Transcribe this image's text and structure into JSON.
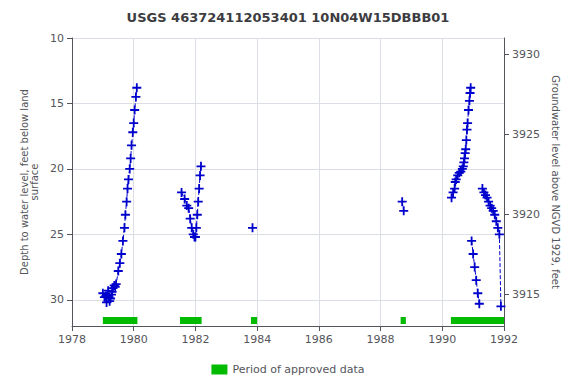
{
  "chart_data": {
    "type": "line",
    "title": "USGS 463724112053401 10N04W15DBBB01",
    "ylabel": "Depth to water level, feet below land\nsurface",
    "y2label": "Groundwater level above NGVD 1929, feet",
    "xlim": [
      1978,
      1992
    ],
    "xticks": [
      1978,
      1980,
      1982,
      1984,
      1986,
      1988,
      1990,
      1992
    ],
    "ylim": [
      32,
      10
    ],
    "yticks": [
      10,
      15,
      20,
      25,
      30
    ],
    "y2lim": [
      3913,
      3931
    ],
    "y2ticks": [
      3915,
      3920,
      3925,
      3930
    ],
    "grid": true,
    "marker": "+",
    "line_style": "dashed",
    "legend": "bottom",
    "series": [
      {
        "color": "#0000cc",
        "x": [
          1979.0,
          1979.05,
          1979.1,
          1979.12,
          1979.15,
          1979.17,
          1979.2,
          1979.22,
          1979.25,
          1979.28,
          1979.3,
          1979.33,
          1979.37,
          1979.4,
          1979.43,
          1979.5,
          1979.55,
          1979.6,
          1979.65,
          1979.7,
          1979.73,
          1979.77,
          1979.8,
          1979.83,
          1979.87,
          1979.9,
          1979.93,
          1979.97,
          1980.0,
          1980.03,
          1980.07,
          1980.1
        ],
        "values": [
          29.5,
          29.8,
          29.7,
          30.2,
          29.6,
          29.3,
          29.8,
          30.1,
          29.9,
          29.6,
          29.4,
          29.1,
          28.9,
          29.0,
          28.8,
          27.8,
          27.2,
          26.5,
          25.5,
          24.5,
          23.5,
          22.5,
          21.5,
          20.8,
          20.0,
          19.2,
          18.2,
          17.2,
          16.5,
          15.5,
          14.5,
          13.8
        ]
      },
      {
        "color": "#0000cc",
        "x": [
          1981.55,
          1981.65,
          1981.72,
          1981.78,
          1981.83,
          1981.88,
          1981.93,
          1981.97,
          1982.0,
          1982.03,
          1982.06,
          1982.09,
          1982.12,
          1982.15,
          1982.18
        ],
        "values": [
          21.8,
          22.3,
          22.8,
          23.0,
          23.8,
          24.5,
          25.0,
          25.2,
          25.2,
          24.5,
          23.5,
          22.5,
          21.5,
          20.5,
          19.8
        ]
      },
      {
        "color": "#0000cc",
        "x": [
          1983.85
        ],
        "values": [
          24.5
        ]
      },
      {
        "color": "#0000cc",
        "x": [
          1988.7,
          1988.75
        ],
        "values": [
          22.5,
          23.2
        ]
      },
      {
        "color": "#0000cc",
        "x": [
          1990.3,
          1990.35,
          1990.4,
          1990.42,
          1990.45,
          1990.5,
          1990.55,
          1990.6,
          1990.65,
          1990.68,
          1990.7,
          1990.72,
          1990.74,
          1990.76,
          1990.78,
          1990.8,
          1990.82,
          1990.85,
          1990.88,
          1990.9,
          1990.92
        ],
        "values": [
          22.2,
          21.8,
          21.5,
          21.0,
          20.8,
          20.5,
          20.3,
          20.2,
          20.0,
          19.8,
          19.5,
          19.2,
          18.8,
          18.5,
          17.8,
          17.0,
          16.5,
          15.5,
          14.8,
          14.2,
          13.8
        ]
      },
      {
        "color": "#0000cc",
        "x": [
          1990.95,
          1991.0,
          1991.05,
          1991.1,
          1991.15,
          1991.2
        ],
        "values": [
          25.5,
          26.5,
          27.5,
          28.5,
          29.5,
          30.3
        ]
      },
      {
        "color": "#0000cc",
        "x": [
          1991.3,
          1991.35,
          1991.4,
          1991.45,
          1991.5,
          1991.55,
          1991.6,
          1991.65,
          1991.7,
          1991.75,
          1991.8,
          1991.85,
          1991.9
        ],
        "values": [
          21.5,
          21.8,
          22.0,
          22.2,
          22.5,
          22.8,
          23.0,
          23.2,
          23.5,
          24.0,
          24.5,
          25.0,
          30.5
        ]
      }
    ],
    "periods": {
      "name": "Period of approved data",
      "color": "#00bb00",
      "ranges": [
        [
          1979.0,
          1980.12
        ],
        [
          1981.5,
          1982.2
        ],
        [
          1983.8,
          1984.0
        ],
        [
          1988.65,
          1988.82
        ],
        [
          1990.28,
          1992.0
        ]
      ]
    }
  }
}
